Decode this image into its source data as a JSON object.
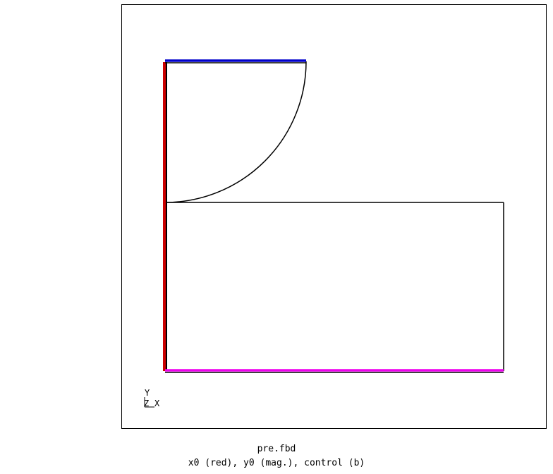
{
  "colors": {
    "background": "#ffffff",
    "frame": "#000000",
    "geometry": "#000000",
    "set_x0": "#cc0000",
    "set_y0": "#ee00ee",
    "set_control": "#0000cc",
    "edge_shadow": "#000000"
  },
  "axis_triad": {
    "y_label": "Y",
    "z_label": "Z",
    "x_label": "X"
  },
  "caption": {
    "filename": "pre.fbd",
    "legend": "x0 (red), y0 (mag.), control (b)"
  }
}
